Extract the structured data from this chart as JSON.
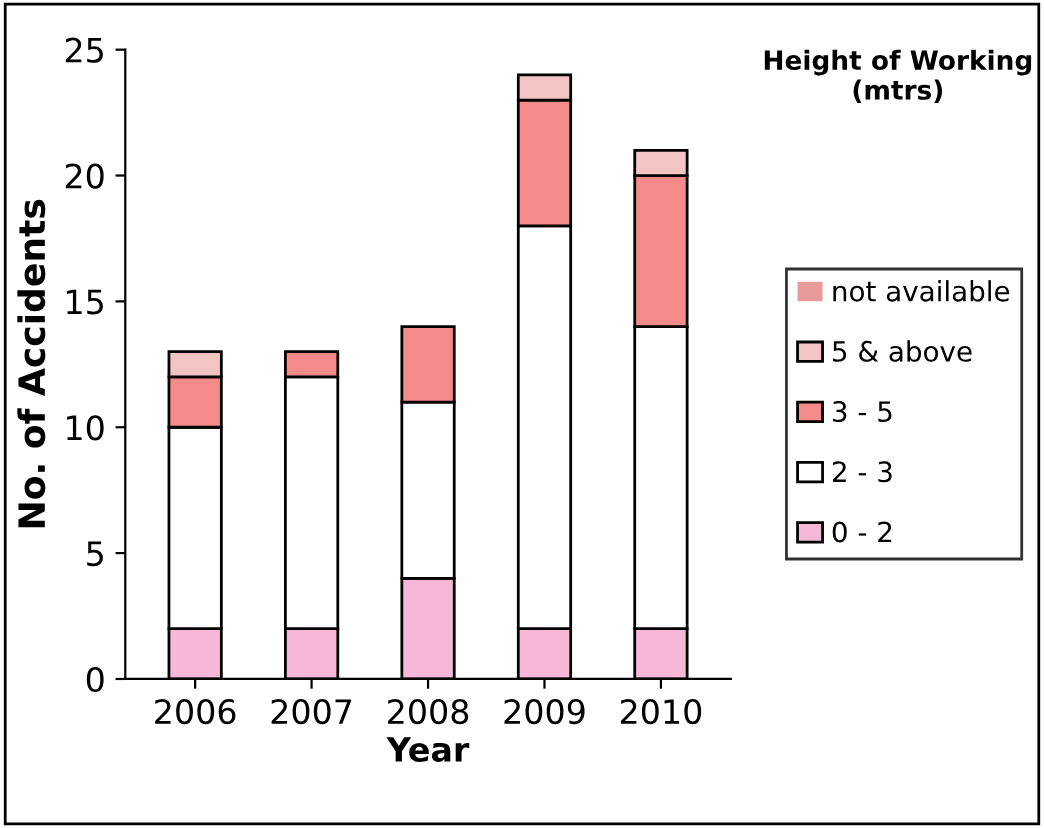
{
  "chart_data": {
    "type": "bar",
    "stacked": true,
    "xlabel": "Year",
    "ylabel": "No. of Accidents",
    "legend_title": "Height of Working (mtrs)",
    "categories": [
      "2006",
      "2007",
      "2008",
      "2009",
      "2010"
    ],
    "series": [
      {
        "name": "0 - 2",
        "color": "#f6b8d6",
        "values": [
          2,
          2,
          4,
          2,
          2
        ]
      },
      {
        "name": "2 - 3",
        "color": "#ffffff",
        "values": [
          8,
          10,
          7,
          16,
          12
        ]
      },
      {
        "name": "3 - 5",
        "color": "#f48a8a",
        "values": [
          2,
          1,
          3,
          5,
          6
        ]
      },
      {
        "name": "5 & above",
        "color": "#f2c4c4",
        "values": [
          1,
          0,
          0,
          1,
          1
        ]
      },
      {
        "name": "not available",
        "color": "#e89a9a",
        "values": [
          0,
          0,
          0,
          0,
          0
        ]
      }
    ],
    "ylim": [
      0,
      25
    ],
    "yticks": [
      0,
      5,
      10,
      15,
      20,
      25
    ],
    "grid": false,
    "legend": "right"
  }
}
